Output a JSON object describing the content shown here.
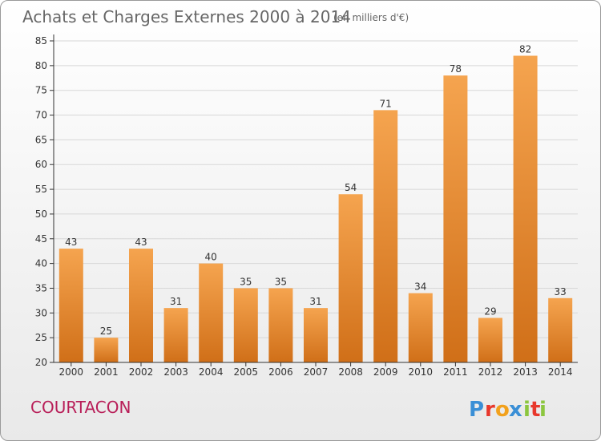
{
  "header": {
    "title": "Achats et Charges Externes 2000 à 2014",
    "unit_note": "(en milliers d'€)"
  },
  "place_name": "COURTACON",
  "logo": {
    "text": "Proxiti",
    "letters": [
      "P",
      "r",
      "o",
      "x",
      "i",
      "t",
      "i"
    ]
  },
  "colors": {
    "bar_light": "#f5a44f",
    "bar_dark": "#d06f18",
    "grid": "#d8d8d8",
    "axis": "#333333",
    "place": "#b81e58"
  },
  "chart_data": {
    "type": "bar",
    "categories": [
      "2000",
      "2001",
      "2002",
      "2003",
      "2004",
      "2005",
      "2006",
      "2007",
      "2008",
      "2009",
      "2010",
      "2011",
      "2012",
      "2013",
      "2014"
    ],
    "values": [
      43,
      25,
      43,
      31,
      40,
      35,
      35,
      31,
      54,
      71,
      34,
      78,
      29,
      82,
      33
    ],
    "ylim": [
      20,
      85
    ],
    "yticks": [
      20,
      25,
      30,
      35,
      40,
      45,
      50,
      55,
      60,
      65,
      70,
      75,
      80,
      85
    ],
    "grid": true,
    "xlabel": "",
    "ylabel": ""
  }
}
